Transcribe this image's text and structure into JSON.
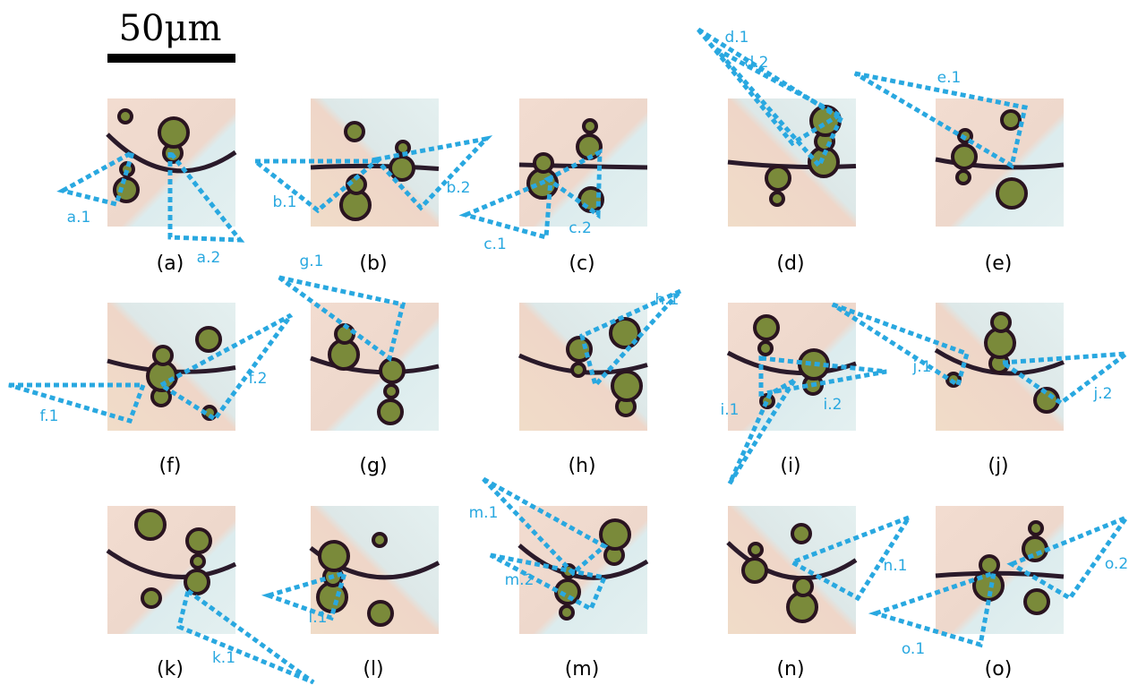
{
  "scale_bar": {
    "label": "50μm"
  },
  "panels": [
    {
      "label": "(a)",
      "annotations": [
        "a.1",
        "a.2"
      ]
    },
    {
      "label": "(b)",
      "annotations": [
        "b.1",
        "b.2"
      ]
    },
    {
      "label": "(c)",
      "annotations": [
        "c.1",
        "c.2"
      ]
    },
    {
      "label": "(d)",
      "annotations": [
        "d.1",
        "d.2"
      ]
    },
    {
      "label": "(e)",
      "annotations": [
        "e.1"
      ]
    },
    {
      "label": "(f)",
      "annotations": [
        "f.1",
        "f.2"
      ]
    },
    {
      "label": "(g)",
      "annotations": [
        "g.1"
      ]
    },
    {
      "label": "(h)",
      "annotations": [
        "h.1"
      ]
    },
    {
      "label": "(i)",
      "annotations": [
        "i.1",
        "i.2"
      ]
    },
    {
      "label": "(j)",
      "annotations": [
        "j.1",
        "j.2"
      ]
    },
    {
      "label": "(k)",
      "annotations": [
        "k.1"
      ]
    },
    {
      "label": "(l)",
      "annotations": [
        "l.1"
      ]
    },
    {
      "label": "(m)",
      "annotations": [
        "m.1",
        "m.2"
      ]
    },
    {
      "label": "(n)",
      "annotations": [
        "n.1"
      ]
    },
    {
      "label": "(o)",
      "annotations": [
        "o.1",
        "o.2"
      ]
    }
  ]
}
